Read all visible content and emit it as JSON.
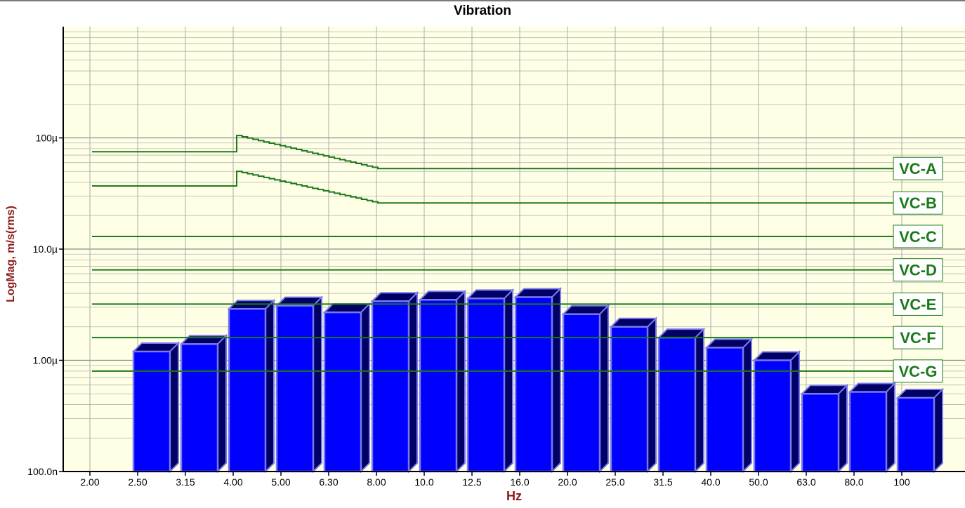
{
  "chart_data": {
    "type": "bar",
    "title": "Vibration",
    "xlabel": "Hz",
    "ylabel": "LogMag, m/s(rms)",
    "y_scale": "log",
    "ylim": [
      1e-07,
      0.001
    ],
    "y_ticks": [
      {
        "value": 0.0001,
        "label": "100µ"
      },
      {
        "value": 1e-05,
        "label": "10.0µ"
      },
      {
        "value": 1e-06,
        "label": "1.00µ"
      },
      {
        "value": 1e-07,
        "label": "100.0n"
      }
    ],
    "grid": true,
    "legend": "none",
    "categories": [
      "2.00",
      "2.50",
      "3.15",
      "4.00",
      "5.00",
      "6.30",
      "8.00",
      "10.0",
      "12.5",
      "16.0",
      "20.0",
      "25.0",
      "31.5",
      "40.0",
      "50.0",
      "63.0",
      "80.0",
      "100"
    ],
    "values": [
      null,
      1.2e-06,
      1.4e-06,
      2.9e-06,
      3.1e-06,
      2.7e-06,
      3.4e-06,
      3.5e-06,
      3.6e-06,
      3.7e-06,
      2.6e-06,
      2e-06,
      1.6e-06,
      1.3e-06,
      1e-06,
      5e-07,
      5.2e-07,
      4.6e-07
    ],
    "bar_color": "#0000ff",
    "bar_side_color": "#000066",
    "bar_edge_color": "#7a7aee",
    "plot_background": "#ffffe6",
    "criteria": [
      {
        "name": "VC-A",
        "low": 7.5e-05,
        "peak": 0.000105,
        "plateau": 5.3e-05
      },
      {
        "name": "VC-B",
        "low": 3.7e-05,
        "peak": 5e-05,
        "plateau": 2.6e-05
      },
      {
        "name": "VC-C",
        "level": 1.3e-05
      },
      {
        "name": "VC-D",
        "level": 6.5e-06
      },
      {
        "name": "VC-E",
        "level": 3.2e-06
      },
      {
        "name": "VC-F",
        "level": 1.6e-06
      },
      {
        "name": "VC-G",
        "level": 8e-07
      }
    ],
    "criteria_color": "#1a7a1a"
  }
}
